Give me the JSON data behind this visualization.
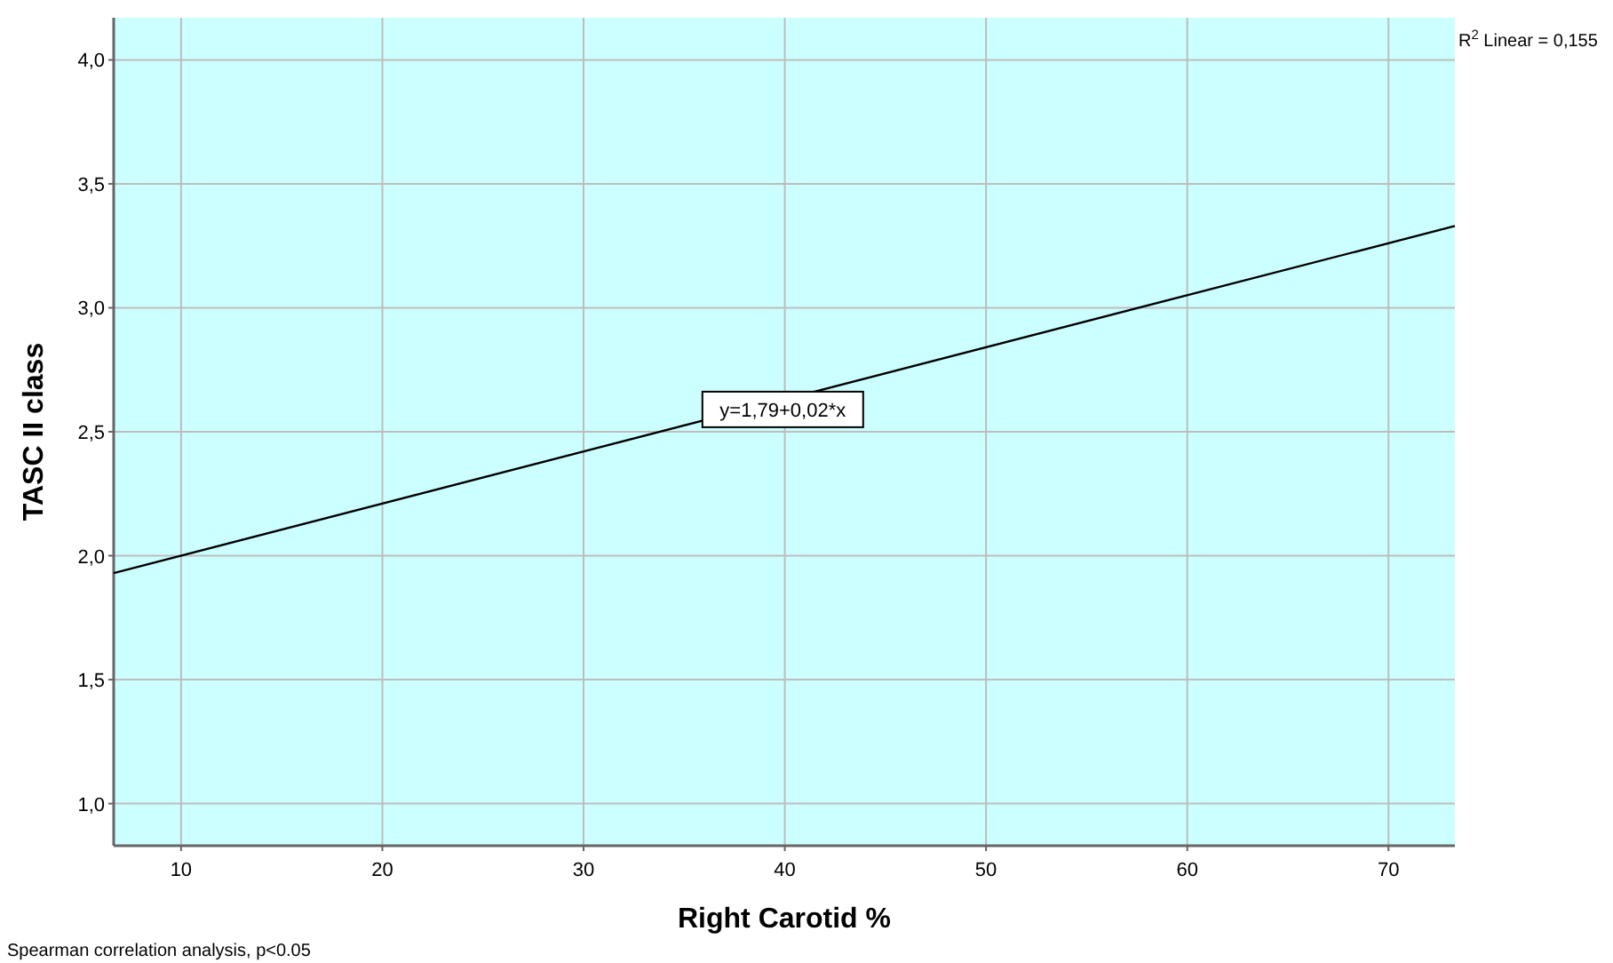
{
  "chart_data": {
    "type": "line",
    "xlabel": "Right Carotid %",
    "ylabel": "TASC II class",
    "xlim": [
      6.65,
      73.3
    ],
    "xticks": [
      10,
      20,
      30,
      40,
      50,
      60,
      70
    ],
    "ylim": [
      0.83,
      4.17
    ],
    "yticks": [
      {
        "value": 1,
        "label": "1,0"
      },
      {
        "value": 1.5,
        "label": "1,5"
      },
      {
        "value": 2,
        "label": "2,0"
      },
      {
        "value": 2.5,
        "label": "2,5"
      },
      {
        "value": 3,
        "label": "3,0"
      },
      {
        "value": 3.5,
        "label": "3,5"
      },
      {
        "value": 4,
        "label": "4,0"
      }
    ],
    "grid": true,
    "marker": "none",
    "line_style": "solid",
    "series": [
      {
        "color": "#000000",
        "x": [
          6.65,
          73.3
        ],
        "values": [
          1.93,
          3.33
        ]
      }
    ],
    "annotations": [
      {
        "text": "y=1,79+0,02*x",
        "x": 39.9,
        "y": 2.59
      },
      "R$^{2}$ Linear = 0,155",
      "Spearman correlation analysis, p<0.05"
    ]
  }
}
